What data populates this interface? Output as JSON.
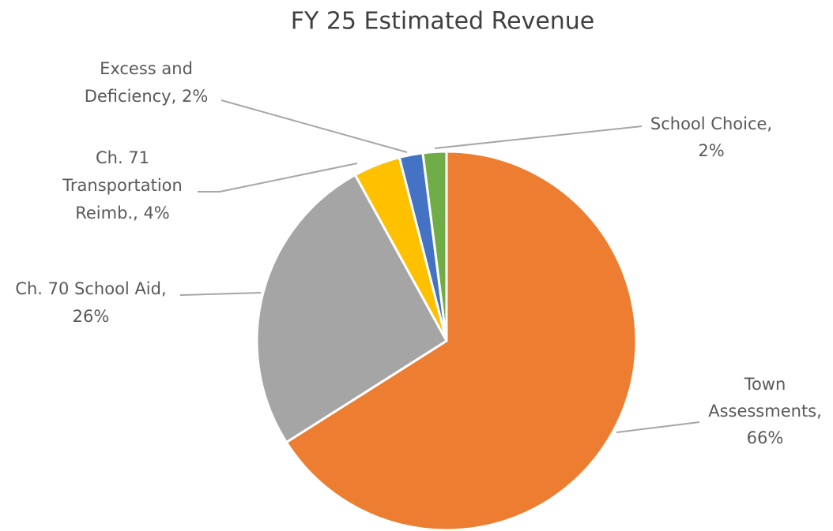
{
  "chart_data": {
    "type": "pie",
    "title": "FY 25 Estimated Revenue",
    "values": [
      66,
      26,
      4,
      2,
      2
    ],
    "colors": [
      "#ED7D31",
      "#A5A5A5",
      "#FFC000",
      "#4472C4",
      "#70AD47"
    ],
    "data_labels": [
      [
        "Town",
        "Assessments,",
        "66%"
      ],
      [
        "Ch. 70 School Aid,",
        "26%"
      ],
      [
        "Ch. 71",
        "Transportation",
        "Reimb., 4%"
      ],
      [
        "Excess and",
        "Deficiency, 2%"
      ],
      [
        "School Choice,",
        "2%"
      ]
    ]
  }
}
